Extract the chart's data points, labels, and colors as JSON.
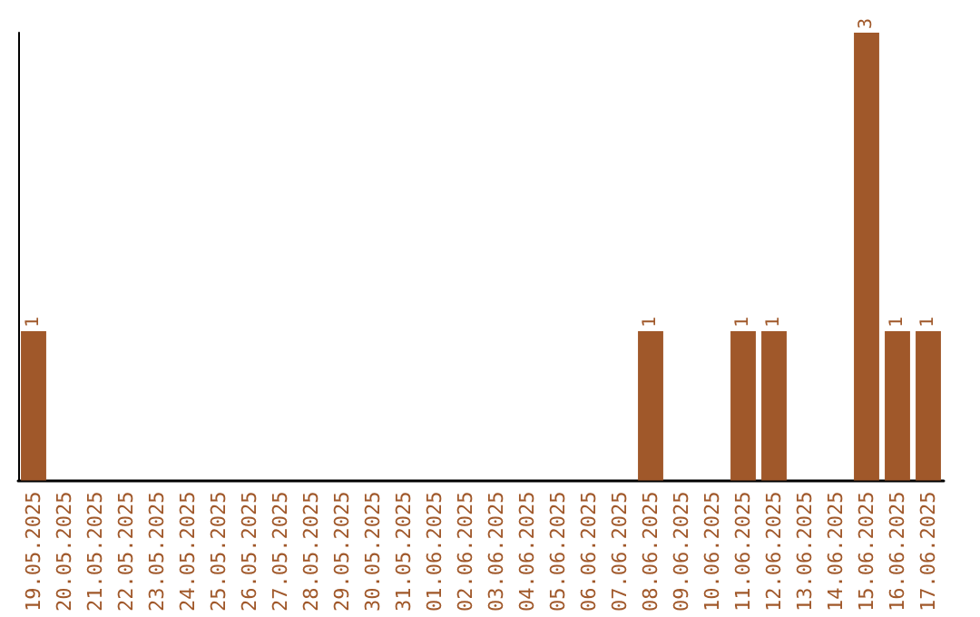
{
  "chart_data": {
    "type": "bar",
    "categories": [
      "19.05.2025",
      "20.05.2025",
      "21.05.2025",
      "22.05.2025",
      "23.05.2025",
      "24.05.2025",
      "25.05.2025",
      "26.05.2025",
      "27.05.2025",
      "28.05.2025",
      "29.05.2025",
      "30.05.2025",
      "31.05.2025",
      "01.06.2025",
      "02.06.2025",
      "03.06.2025",
      "04.06.2025",
      "05.06.2025",
      "06.06.2025",
      "07.06.2025",
      "08.06.2025",
      "09.06.2025",
      "10.06.2025",
      "11.06.2025",
      "12.06.2025",
      "13.06.2025",
      "14.06.2025",
      "15.06.2025",
      "16.06.2025",
      "17.06.2025"
    ],
    "values": [
      1,
      0,
      0,
      0,
      0,
      0,
      0,
      0,
      0,
      0,
      0,
      0,
      0,
      0,
      0,
      0,
      0,
      0,
      0,
      0,
      1,
      0,
      0,
      1,
      1,
      0,
      0,
      3,
      1,
      1
    ],
    "value_labels": [
      "1",
      null,
      null,
      null,
      null,
      null,
      null,
      null,
      null,
      null,
      null,
      null,
      null,
      null,
      null,
      null,
      null,
      null,
      null,
      null,
      "1",
      null,
      null,
      "1",
      "1",
      null,
      null,
      "3",
      "1",
      "1"
    ],
    "color": "#a0582a",
    "ylim": [
      0,
      3
    ],
    "tick_labels": "x"
  }
}
